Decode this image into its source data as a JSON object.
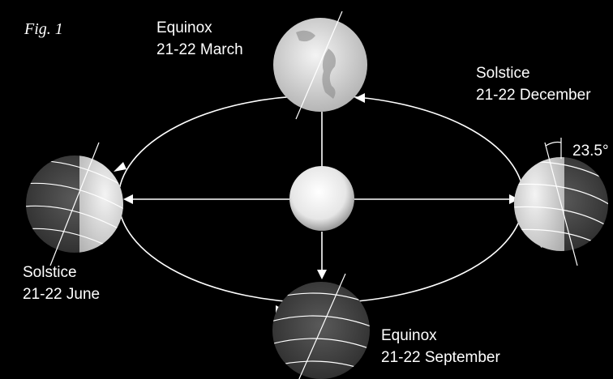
{
  "figure_label": "Fig. 1",
  "nodes": [
    {
      "title": "Equinox",
      "date": "21-22 March"
    },
    {
      "title": "Solstice",
      "date": "21-22 December"
    },
    {
      "title": "Solstice",
      "date": "21-22 June"
    },
    {
      "title": "Equinox",
      "date": "21-22 September"
    }
  ],
  "tilt_label": "23.5°"
}
